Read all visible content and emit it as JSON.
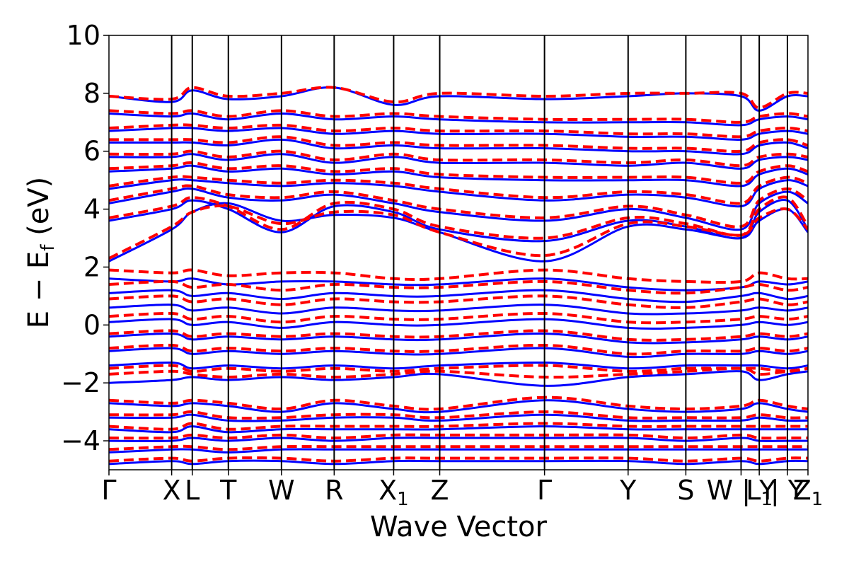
{
  "chart_data": {
    "type": "line",
    "title": "",
    "xlabel": "Wave Vector",
    "ylabel": "E − E_f (eV)",
    "ylabel_main": "E − E",
    "ylabel_sub": "f",
    "ylabel_unit": " (eV)",
    "ylim": [
      -5,
      10
    ],
    "yticks": [
      -4,
      -2,
      0,
      2,
      4,
      6,
      8,
      10
    ],
    "ytick_labels": [
      "−4",
      "−2",
      "0",
      "2",
      "4",
      "6",
      "8",
      "10"
    ],
    "grid": false,
    "kpath": [
      {
        "label": "Γ",
        "sub": "",
        "x": 0.0
      },
      {
        "label": "X",
        "sub": "",
        "x": 0.0897
      },
      {
        "label": "L",
        "sub": "",
        "x": 0.1192
      },
      {
        "label": "T",
        "sub": "",
        "x": 0.1708
      },
      {
        "label": "W",
        "sub": "",
        "x": 0.2468
      },
      {
        "label": "R",
        "sub": "",
        "x": 0.3222
      },
      {
        "label": "X",
        "sub": "1",
        "x": 0.4073
      },
      {
        "label": "Z",
        "sub": "",
        "x": 0.4732
      },
      {
        "label": "Γ",
        "sub": "",
        "x": 0.6231
      },
      {
        "label": "Y",
        "sub": "",
        "x": 0.7427
      },
      {
        "label": "S",
        "sub": "",
        "x": 0.8253
      },
      {
        "label": "W | Y",
        "sub": "",
        "x": 0.9043
      },
      {
        "label": "L",
        "sub": "1",
        "x": 0.9303
      },
      {
        "label": "| Y",
        "sub": "",
        "x": 0.9706
      },
      {
        "label": "Z",
        "sub": "1",
        "x": 1.0
      }
    ],
    "series": [
      {
        "style": "solid",
        "color": "#0000ff",
        "bands": [
          [
            2.2,
            3.3,
            3.9,
            4.2,
            3.6,
            3.8,
            3.7,
            3.2,
            2.2,
            3.4,
            3.3,
            3.0,
            3.6,
            4.0,
            3.2
          ],
          [
            3.6,
            4.0,
            4.3,
            4.0,
            3.2,
            4.1,
            3.9,
            3.3,
            2.9,
            3.6,
            3.4,
            3.0,
            3.9,
            4.3,
            3.3
          ],
          [
            4.2,
            4.6,
            4.7,
            4.4,
            4.3,
            4.5,
            4.2,
            3.9,
            3.6,
            4.0,
            3.7,
            3.3,
            4.2,
            4.6,
            4.2
          ],
          [
            4.7,
            5.0,
            5.0,
            4.9,
            4.8,
            4.9,
            4.8,
            4.6,
            4.3,
            4.5,
            4.4,
            4.1,
            4.7,
            5.0,
            4.8
          ],
          [
            5.3,
            5.4,
            5.5,
            5.3,
            5.4,
            5.2,
            5.3,
            5.1,
            5.0,
            5.0,
            5.0,
            4.8,
            5.2,
            5.4,
            5.2
          ],
          [
            5.8,
            5.8,
            5.9,
            5.7,
            5.9,
            5.6,
            5.8,
            5.6,
            5.6,
            5.5,
            5.6,
            5.4,
            5.7,
            5.8,
            5.7
          ],
          [
            6.3,
            6.3,
            6.3,
            6.2,
            6.4,
            6.1,
            6.2,
            6.1,
            6.1,
            6.0,
            6.0,
            5.9,
            6.2,
            6.3,
            6.1
          ],
          [
            6.7,
            6.8,
            6.8,
            6.7,
            6.8,
            6.6,
            6.7,
            6.6,
            6.6,
            6.5,
            6.5,
            6.4,
            6.6,
            6.7,
            6.6
          ],
          [
            7.3,
            7.2,
            7.3,
            7.1,
            7.3,
            7.1,
            7.2,
            7.1,
            7.0,
            7.0,
            7.0,
            6.9,
            7.1,
            7.2,
            7.1
          ],
          [
            7.9,
            7.7,
            8.1,
            7.8,
            7.9,
            8.2,
            7.6,
            7.9,
            7.8,
            7.9,
            8.0,
            7.9,
            7.4,
            7.9,
            7.9
          ],
          [
            1.6,
            1.5,
            1.6,
            1.4,
            1.5,
            1.5,
            1.4,
            1.4,
            1.6,
            1.3,
            1.2,
            1.3,
            1.5,
            1.4,
            1.5
          ],
          [
            1.1,
            1.2,
            1.0,
            1.1,
            0.9,
            1.1,
            1.0,
            1.0,
            1.2,
            0.9,
            0.8,
            1.0,
            1.1,
            0.9,
            1.0
          ],
          [
            0.6,
            0.7,
            0.5,
            0.6,
            0.4,
            0.6,
            0.5,
            0.5,
            0.7,
            0.4,
            0.4,
            0.5,
            0.6,
            0.5,
            0.6
          ],
          [
            0.1,
            0.2,
            0.0,
            0.1,
            -0.1,
            0.1,
            0.0,
            0.0,
            0.2,
            -0.1,
            -0.1,
            0.0,
            0.1,
            0.0,
            0.1
          ],
          [
            -0.4,
            -0.3,
            -0.5,
            -0.4,
            -0.5,
            -0.4,
            -0.5,
            -0.5,
            -0.3,
            -0.6,
            -0.6,
            -0.5,
            -0.4,
            -0.5,
            -0.4
          ],
          [
            -0.9,
            -0.8,
            -1.0,
            -0.9,
            -1.0,
            -0.9,
            -1.0,
            -1.0,
            -0.8,
            -1.1,
            -1.0,
            -1.0,
            -0.9,
            -1.0,
            -0.9
          ],
          [
            -1.4,
            -1.3,
            -1.5,
            -1.4,
            -1.5,
            -1.4,
            -1.5,
            -1.4,
            -1.3,
            -1.5,
            -1.4,
            -1.4,
            -1.4,
            -1.5,
            -1.4
          ],
          [
            -2.0,
            -1.9,
            -1.8,
            -1.9,
            -1.8,
            -1.9,
            -1.8,
            -1.7,
            -2.1,
            -1.8,
            -1.7,
            -1.6,
            -1.9,
            -1.7,
            -1.6
          ],
          [
            -2.7,
            -2.8,
            -2.7,
            -2.8,
            -3.0,
            -2.7,
            -2.9,
            -3.0,
            -2.6,
            -2.9,
            -3.0,
            -2.9,
            -2.7,
            -2.9,
            -3.0
          ],
          [
            -3.2,
            -3.2,
            -3.1,
            -3.3,
            -3.3,
            -3.2,
            -3.2,
            -3.3,
            -3.1,
            -3.3,
            -3.3,
            -3.3,
            -3.2,
            -3.3,
            -3.3
          ],
          [
            -3.6,
            -3.7,
            -3.5,
            -3.7,
            -3.6,
            -3.6,
            -3.6,
            -3.6,
            -3.5,
            -3.6,
            -3.6,
            -3.6,
            -3.6,
            -3.6,
            -3.6
          ],
          [
            -4.0,
            -4.0,
            -3.9,
            -4.0,
            -3.9,
            -4.0,
            -3.9,
            -3.9,
            -3.9,
            -3.9,
            -4.0,
            -3.9,
            -4.0,
            -4.0,
            -4.0
          ],
          [
            -4.4,
            -4.3,
            -4.3,
            -4.4,
            -4.3,
            -4.3,
            -4.3,
            -4.3,
            -4.3,
            -4.3,
            -4.3,
            -4.3,
            -4.3,
            -4.3,
            -4.3
          ],
          [
            -4.8,
            -4.7,
            -4.8,
            -4.7,
            -4.7,
            -4.8,
            -4.7,
            -4.7,
            -4.7,
            -4.7,
            -4.8,
            -4.7,
            -4.8,
            -4.7,
            -4.7
          ]
        ]
      },
      {
        "style": "dashed",
        "color": "#ff0000",
        "bands": [
          [
            2.3,
            3.4,
            3.9,
            4.1,
            3.5,
            3.9,
            3.8,
            3.2,
            2.4,
            3.5,
            3.4,
            3.1,
            3.7,
            4.0,
            3.3
          ],
          [
            3.7,
            4.1,
            4.4,
            4.1,
            3.3,
            4.2,
            4.0,
            3.4,
            3.0,
            3.7,
            3.5,
            3.1,
            4.0,
            4.4,
            3.4
          ],
          [
            4.3,
            4.7,
            4.8,
            4.5,
            4.4,
            4.6,
            4.3,
            4.0,
            3.7,
            4.1,
            3.8,
            3.4,
            4.3,
            4.7,
            4.3
          ],
          [
            4.8,
            5.1,
            5.1,
            5.0,
            4.9,
            5.0,
            4.9,
            4.7,
            4.4,
            4.6,
            4.5,
            4.2,
            4.8,
            5.1,
            4.9
          ],
          [
            5.4,
            5.5,
            5.6,
            5.4,
            5.5,
            5.3,
            5.4,
            5.2,
            5.1,
            5.1,
            5.1,
            4.9,
            5.3,
            5.5,
            5.3
          ],
          [
            5.9,
            5.9,
            6.0,
            5.8,
            6.0,
            5.7,
            5.9,
            5.7,
            5.7,
            5.6,
            5.7,
            5.5,
            5.8,
            5.9,
            5.8
          ],
          [
            6.4,
            6.4,
            6.4,
            6.3,
            6.5,
            6.2,
            6.3,
            6.2,
            6.2,
            6.1,
            6.1,
            6.0,
            6.3,
            6.4,
            6.2
          ],
          [
            6.8,
            6.9,
            6.9,
            6.8,
            6.9,
            6.7,
            6.8,
            6.7,
            6.7,
            6.6,
            6.6,
            6.5,
            6.7,
            6.8,
            6.7
          ],
          [
            7.4,
            7.3,
            7.4,
            7.2,
            7.4,
            7.2,
            7.3,
            7.2,
            7.1,
            7.1,
            7.1,
            7.0,
            7.2,
            7.3,
            7.2
          ],
          [
            7.9,
            7.8,
            8.2,
            7.9,
            8.0,
            8.2,
            7.7,
            8.0,
            7.9,
            8.0,
            8.0,
            8.0,
            7.5,
            8.0,
            8.0
          ],
          [
            1.9,
            1.8,
            1.9,
            1.7,
            1.8,
            1.8,
            1.6,
            1.6,
            1.9,
            1.6,
            1.5,
            1.5,
            1.8,
            1.6,
            1.6
          ],
          [
            1.4,
            1.5,
            1.3,
            1.4,
            1.2,
            1.4,
            1.3,
            1.3,
            1.5,
            1.2,
            1.1,
            1.3,
            1.4,
            1.2,
            1.3
          ],
          [
            0.9,
            1.0,
            0.8,
            0.9,
            0.7,
            0.9,
            0.8,
            0.8,
            1.0,
            0.7,
            0.6,
            0.8,
            0.9,
            0.7,
            0.8
          ],
          [
            0.3,
            0.4,
            0.2,
            0.3,
            0.1,
            0.3,
            0.2,
            0.2,
            0.4,
            0.1,
            0.1,
            0.2,
            0.3,
            0.2,
            0.3
          ],
          [
            -0.3,
            -0.2,
            -0.4,
            -0.3,
            -0.4,
            -0.3,
            -0.4,
            -0.4,
            -0.2,
            -0.5,
            -0.5,
            -0.4,
            -0.3,
            -0.4,
            -0.3
          ],
          [
            -0.8,
            -0.7,
            -0.9,
            -0.8,
            -0.9,
            -0.8,
            -0.9,
            -0.9,
            -0.7,
            -1.0,
            -0.9,
            -0.9,
            -0.8,
            -0.9,
            -0.8
          ],
          [
            -1.5,
            -1.4,
            -1.6,
            -1.5,
            -1.6,
            -1.5,
            -1.6,
            -1.5,
            -1.4,
            -1.6,
            -1.5,
            -1.5,
            -1.5,
            -1.6,
            -1.5
          ],
          [
            -1.7,
            -1.6,
            -1.7,
            -1.8,
            -1.7,
            -1.8,
            -1.7,
            -1.6,
            -1.8,
            -1.7,
            -1.6,
            -1.5,
            -1.7,
            -1.6,
            -1.5
          ],
          [
            -2.6,
            -2.7,
            -2.6,
            -2.7,
            -2.9,
            -2.6,
            -2.8,
            -2.9,
            -2.5,
            -2.8,
            -2.9,
            -2.8,
            -2.6,
            -2.8,
            -2.9
          ],
          [
            -3.1,
            -3.1,
            -3.0,
            -3.2,
            -3.2,
            -3.1,
            -3.1,
            -3.2,
            -3.0,
            -3.2,
            -3.2,
            -3.2,
            -3.1,
            -3.2,
            -3.2
          ],
          [
            -3.5,
            -3.6,
            -3.4,
            -3.6,
            -3.5,
            -3.5,
            -3.5,
            -3.5,
            -3.4,
            -3.5,
            -3.5,
            -3.5,
            -3.5,
            -3.5,
            -3.5
          ],
          [
            -3.9,
            -3.9,
            -3.8,
            -3.9,
            -3.8,
            -3.9,
            -3.8,
            -3.8,
            -3.8,
            -3.8,
            -3.9,
            -3.8,
            -3.9,
            -3.9,
            -3.9
          ],
          [
            -4.3,
            -4.2,
            -4.2,
            -4.3,
            -4.2,
            -4.2,
            -4.2,
            -4.2,
            -4.2,
            -4.2,
            -4.2,
            -4.2,
            -4.2,
            -4.2,
            -4.2
          ],
          [
            -4.7,
            -4.6,
            -4.7,
            -4.6,
            -4.6,
            -4.7,
            -4.6,
            -4.6,
            -4.6,
            -4.6,
            -4.7,
            -4.6,
            -4.7,
            -4.6,
            -4.6
          ]
        ]
      }
    ]
  }
}
